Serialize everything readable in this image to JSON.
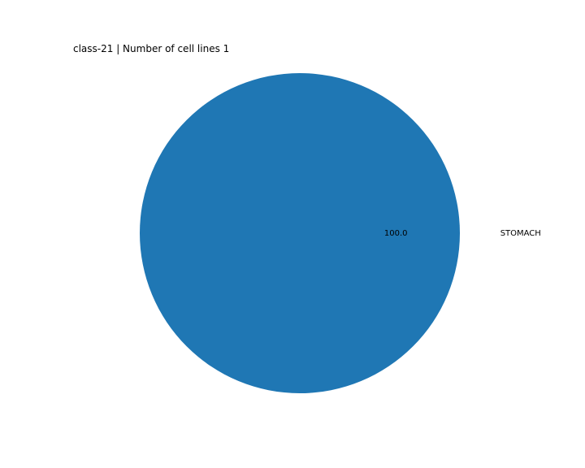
{
  "chart_data": {
    "type": "pie",
    "title": "class-21 | Number of cell lines 1",
    "categories": [
      "STOMACH"
    ],
    "values": [
      1
    ],
    "percent_labels": [
      "100.0"
    ],
    "colors": [
      "#1f77b4"
    ]
  }
}
